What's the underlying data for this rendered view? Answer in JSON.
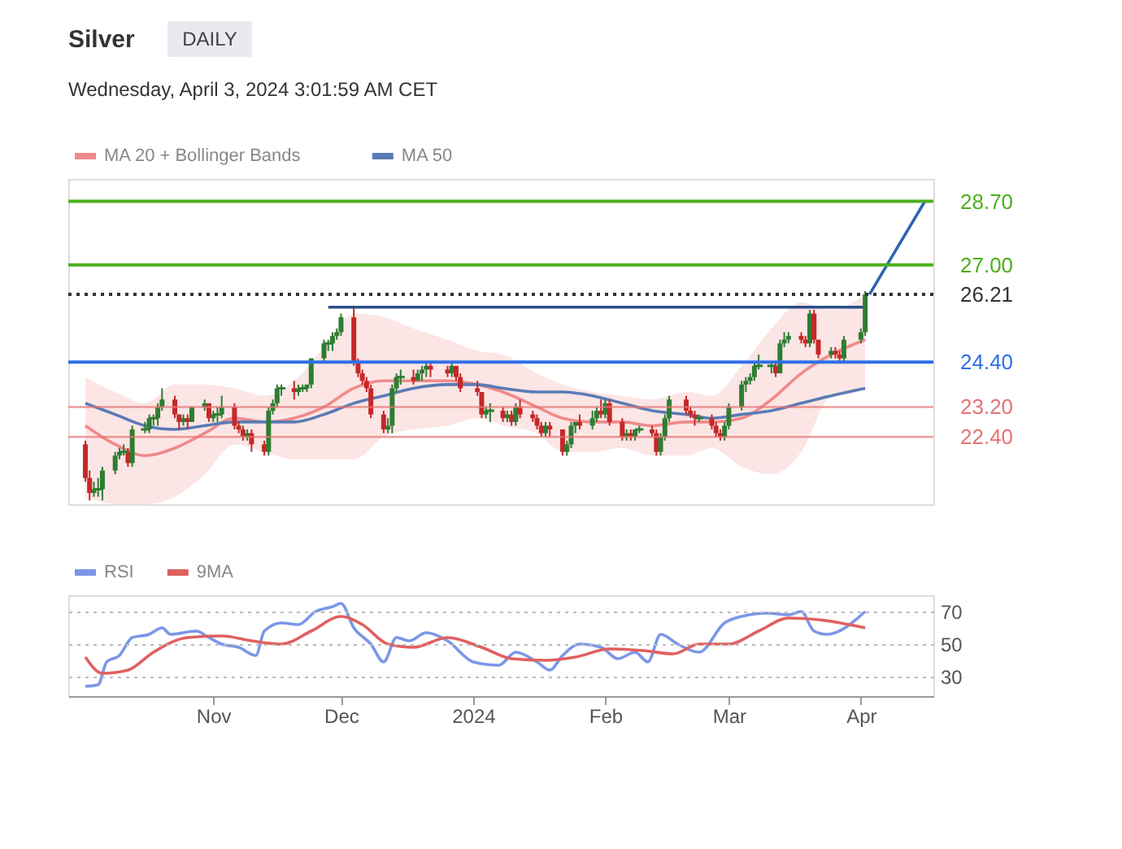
{
  "chart_data": [
    {
      "type": "candlestick",
      "title": "Silver",
      "subtitle": "Wednesday, April 3, 2024 3:01:59 AM CET",
      "annotations": [
        "DAILY"
      ],
      "xlim": [
        "2023-09-28",
        "2024-04-18"
      ],
      "ylim": [
        20.6,
        29.3
      ],
      "tick_labels": "y",
      "legend": "top left",
      "yticks": [
        {
          "value": 28.7,
          "label": "28.70"
        },
        {
          "value": 27.0,
          "label": "27.00"
        },
        {
          "value": 26.21,
          "label": "26.21"
        },
        {
          "value": 24.4,
          "label": "24.40"
        },
        {
          "value": 23.2,
          "label": "23.20"
        },
        {
          "value": 22.4,
          "label": "22.40"
        }
      ],
      "x": [
        "2023-10-02",
        "2023-10-03",
        "2023-10-04",
        "2023-10-05",
        "2023-10-06",
        "2023-10-09",
        "2023-10-10",
        "2023-10-11",
        "2023-10-12",
        "2023-10-13",
        "2023-10-16",
        "2023-10-17",
        "2023-10-18",
        "2023-10-19",
        "2023-10-20",
        "2023-10-23",
        "2023-10-24",
        "2023-10-25",
        "2023-10-26",
        "2023-10-27",
        "2023-10-30",
        "2023-10-31",
        "2023-11-01",
        "2023-11-02",
        "2023-11-03",
        "2023-11-06",
        "2023-11-07",
        "2023-11-08",
        "2023-11-09",
        "2023-11-10",
        "2023-11-13",
        "2023-11-14",
        "2023-11-15",
        "2023-11-16",
        "2023-11-17",
        "2023-11-20",
        "2023-11-21",
        "2023-11-22",
        "2023-11-23",
        "2023-11-24",
        "2023-11-27",
        "2023-11-28",
        "2023-11-29",
        "2023-11-30",
        "2023-12-01",
        "2023-12-04",
        "2023-12-05",
        "2023-12-06",
        "2023-12-07",
        "2023-12-08",
        "2023-12-11",
        "2023-12-12",
        "2023-12-13",
        "2023-12-14",
        "2023-12-15",
        "2023-12-18",
        "2023-12-19",
        "2023-12-20",
        "2023-12-21",
        "2023-12-22",
        "2023-12-26",
        "2023-12-27",
        "2023-12-28",
        "2023-12-29",
        "2024-01-02",
        "2024-01-03",
        "2024-01-04",
        "2024-01-05",
        "2024-01-08",
        "2024-01-09",
        "2024-01-10",
        "2024-01-11",
        "2024-01-12",
        "2024-01-15",
        "2024-01-16",
        "2024-01-17",
        "2024-01-18",
        "2024-01-19",
        "2024-01-22",
        "2024-01-23",
        "2024-01-24",
        "2024-01-25",
        "2024-01-26",
        "2024-01-29",
        "2024-01-30",
        "2024-01-31",
        "2024-02-01",
        "2024-02-02",
        "2024-02-05",
        "2024-02-06",
        "2024-02-07",
        "2024-02-08",
        "2024-02-09",
        "2024-02-12",
        "2024-02-13",
        "2024-02-14",
        "2024-02-15",
        "2024-02-16",
        "2024-02-20",
        "2024-02-21",
        "2024-02-22",
        "2024-02-23",
        "2024-02-26",
        "2024-02-27",
        "2024-02-28",
        "2024-02-29",
        "2024-03-01",
        "2024-03-04",
        "2024-03-05",
        "2024-03-06",
        "2024-03-07",
        "2024-03-08",
        "2024-03-11",
        "2024-03-12",
        "2024-03-13",
        "2024-03-14",
        "2024-03-15",
        "2024-03-18",
        "2024-03-19",
        "2024-03-20",
        "2024-03-21",
        "2024-03-22",
        "2024-03-25",
        "2024-03-26",
        "2024-03-27",
        "2024-03-28",
        "2024-04-01",
        "2024-04-02"
      ],
      "ohlc": [
        [
          22.2,
          22.3,
          21.2,
          21.3
        ],
        [
          21.3,
          21.5,
          20.7,
          20.9
        ],
        [
          20.9,
          21.2,
          20.8,
          21.0
        ],
        [
          21.0,
          21.3,
          20.8,
          21.0
        ],
        [
          21.0,
          21.6,
          20.7,
          21.5
        ],
        [
          21.5,
          22.0,
          21.4,
          21.9
        ],
        [
          21.9,
          22.1,
          21.8,
          22.0
        ],
        [
          22.0,
          22.2,
          21.9,
          22.0
        ],
        [
          22.0,
          22.1,
          21.6,
          21.7
        ],
        [
          21.7,
          22.7,
          21.6,
          22.6
        ],
        [
          22.6,
          22.8,
          22.5,
          22.6
        ],
        [
          22.6,
          23.0,
          22.5,
          22.9
        ],
        [
          22.9,
          23.0,
          22.7,
          22.9
        ],
        [
          22.9,
          23.3,
          22.7,
          23.2
        ],
        [
          23.2,
          23.7,
          23.1,
          23.4
        ],
        [
          23.4,
          23.5,
          22.9,
          23.0
        ],
        [
          23.0,
          23.0,
          22.6,
          22.8
        ],
        [
          22.8,
          23.0,
          22.7,
          22.9
        ],
        [
          22.9,
          23.0,
          22.6,
          22.8
        ],
        [
          22.8,
          23.2,
          22.8,
          23.2
        ],
        [
          23.2,
          23.4,
          23.1,
          23.3
        ],
        [
          23.3,
          23.3,
          22.8,
          22.9
        ],
        [
          22.9,
          23.1,
          22.8,
          23.0
        ],
        [
          23.0,
          23.2,
          22.8,
          23.0
        ],
        [
          23.0,
          23.5,
          22.9,
          23.2
        ],
        [
          23.2,
          23.3,
          22.6,
          22.7
        ],
        [
          22.7,
          22.8,
          22.5,
          22.6
        ],
        [
          22.6,
          22.7,
          22.3,
          22.4
        ],
        [
          22.4,
          22.6,
          22.3,
          22.5
        ],
        [
          22.5,
          22.6,
          22.0,
          22.2
        ],
        [
          22.2,
          22.3,
          21.9,
          22.0
        ],
        [
          22.0,
          23.2,
          21.9,
          23.1
        ],
        [
          23.1,
          23.4,
          23.0,
          23.3
        ],
        [
          23.3,
          23.8,
          23.2,
          23.7
        ],
        [
          23.7,
          23.8,
          23.5,
          23.7
        ],
        [
          23.7,
          23.9,
          23.4,
          23.6
        ],
        [
          23.6,
          23.8,
          23.5,
          23.7
        ],
        [
          23.7,
          23.8,
          23.6,
          23.7
        ],
        [
          23.7,
          23.8,
          23.6,
          23.8
        ],
        [
          23.8,
          24.5,
          23.7,
          24.5
        ],
        [
          24.5,
          25.0,
          24.4,
          24.9
        ],
        [
          24.9,
          25.0,
          24.7,
          24.9
        ],
        [
          24.9,
          25.2,
          24.7,
          25.1
        ],
        [
          25.1,
          25.3,
          25.0,
          25.2
        ],
        [
          25.2,
          25.7,
          25.1,
          25.6
        ],
        [
          25.6,
          25.85,
          24.3,
          24.4
        ],
        [
          24.4,
          24.5,
          24.0,
          24.1
        ],
        [
          24.1,
          24.2,
          23.8,
          23.9
        ],
        [
          23.9,
          24.0,
          23.6,
          23.7
        ],
        [
          23.7,
          23.8,
          22.9,
          23.0
        ],
        [
          23.0,
          23.1,
          22.5,
          22.6
        ],
        [
          22.6,
          22.9,
          22.5,
          22.7
        ],
        [
          22.7,
          23.8,
          22.5,
          23.7
        ],
        [
          23.7,
          24.1,
          23.6,
          24.0
        ],
        [
          24.0,
          24.2,
          23.8,
          24.0
        ],
        [
          24.0,
          24.2,
          23.8,
          23.9
        ],
        [
          23.9,
          24.2,
          23.9,
          24.1
        ],
        [
          24.1,
          24.3,
          23.9,
          24.2
        ],
        [
          24.2,
          24.4,
          24.0,
          24.3
        ],
        [
          24.3,
          24.4,
          24.0,
          24.2
        ],
        [
          24.2,
          24.3,
          24.0,
          24.1
        ],
        [
          24.1,
          24.4,
          24.0,
          24.3
        ],
        [
          24.3,
          24.3,
          23.9,
          24.0
        ],
        [
          24.0,
          24.1,
          23.6,
          23.7
        ],
        [
          23.7,
          23.9,
          23.5,
          23.6
        ],
        [
          23.6,
          23.6,
          22.9,
          23.0
        ],
        [
          23.0,
          23.2,
          22.9,
          23.1
        ],
        [
          23.1,
          23.3,
          22.8,
          23.1
        ],
        [
          23.1,
          23.2,
          22.8,
          22.9
        ],
        [
          22.9,
          23.1,
          22.8,
          23.0
        ],
        [
          23.0,
          23.1,
          22.7,
          22.8
        ],
        [
          22.8,
          23.3,
          22.7,
          23.2
        ],
        [
          23.2,
          23.4,
          22.9,
          23.0
        ],
        [
          23.0,
          23.1,
          22.8,
          22.9
        ],
        [
          22.9,
          23.0,
          22.6,
          22.7
        ],
        [
          22.7,
          22.8,
          22.4,
          22.5
        ],
        [
          22.5,
          22.8,
          22.4,
          22.7
        ],
        [
          22.7,
          22.8,
          22.4,
          22.6
        ],
        [
          22.6,
          22.6,
          21.9,
          22.0
        ],
        [
          22.0,
          22.3,
          21.9,
          22.2
        ],
        [
          22.2,
          22.8,
          22.1,
          22.7
        ],
        [
          22.7,
          22.8,
          22.5,
          22.8
        ],
        [
          22.8,
          23.0,
          22.6,
          22.7
        ],
        [
          22.7,
          23.1,
          22.6,
          22.9
        ],
        [
          22.9,
          23.2,
          22.8,
          23.1
        ],
        [
          23.1,
          23.4,
          22.9,
          23.0
        ],
        [
          23.0,
          23.4,
          22.9,
          23.3
        ],
        [
          23.3,
          23.4,
          22.7,
          22.8
        ],
        [
          22.8,
          22.9,
          22.3,
          22.4
        ],
        [
          22.4,
          22.6,
          22.3,
          22.5
        ],
        [
          22.5,
          22.6,
          22.3,
          22.4
        ],
        [
          22.4,
          22.6,
          22.3,
          22.6
        ],
        [
          22.6,
          22.7,
          22.5,
          22.6
        ],
        [
          22.6,
          22.7,
          22.4,
          22.5
        ],
        [
          22.5,
          22.6,
          21.9,
          22.0
        ],
        [
          22.0,
          22.5,
          21.9,
          22.4
        ],
        [
          22.4,
          23.0,
          22.3,
          22.9
        ],
        [
          22.9,
          23.5,
          22.8,
          23.4
        ],
        [
          23.4,
          23.5,
          23.0,
          23.1
        ],
        [
          23.1,
          23.2,
          22.9,
          23.0
        ],
        [
          23.0,
          23.1,
          22.7,
          22.9
        ],
        [
          22.9,
          23.0,
          22.8,
          22.9
        ],
        [
          22.9,
          23.0,
          22.6,
          22.7
        ],
        [
          22.7,
          22.8,
          22.4,
          22.5
        ],
        [
          22.5,
          22.6,
          22.3,
          22.4
        ],
        [
          22.4,
          22.8,
          22.3,
          22.7
        ],
        [
          22.7,
          23.3,
          22.6,
          23.2
        ],
        [
          23.2,
          23.9,
          23.1,
          23.8
        ],
        [
          23.8,
          24.0,
          23.6,
          23.9
        ],
        [
          23.9,
          24.1,
          23.8,
          24.0
        ],
        [
          24.0,
          24.4,
          23.9,
          24.3
        ],
        [
          24.3,
          24.6,
          24.2,
          24.3
        ],
        [
          24.3,
          24.4,
          24.1,
          24.3
        ],
        [
          24.3,
          24.4,
          24.0,
          24.1
        ],
        [
          24.1,
          25.0,
          24.1,
          24.9
        ],
        [
          24.9,
          25.2,
          24.8,
          25.0
        ],
        [
          25.0,
          25.2,
          24.9,
          25.1
        ],
        [
          25.1,
          25.2,
          24.9,
          25.0
        ],
        [
          25.0,
          25.1,
          24.8,
          24.9
        ],
        [
          24.9,
          25.8,
          24.8,
          25.7
        ],
        [
          25.7,
          25.8,
          24.9,
          25.0
        ],
        [
          25.0,
          25.0,
          24.5,
          24.6
        ],
        [
          24.6,
          24.8,
          24.5,
          24.7
        ],
        [
          24.7,
          24.8,
          24.5,
          24.6
        ],
        [
          24.6,
          24.7,
          24.4,
          24.5
        ],
        [
          24.5,
          25.1,
          24.4,
          25.0
        ],
        [
          25.0,
          25.3,
          24.9,
          25.2
        ],
        [
          25.2,
          26.3,
          25.1,
          26.21
        ]
      ],
      "series": [
        {
          "name": "MA 20 + Bollinger Bands",
          "type": "line",
          "color": "#f08a8a",
          "x": [
            "2023-10-02",
            "2023-10-09",
            "2023-10-16",
            "2023-10-23",
            "2023-10-30",
            "2023-11-06",
            "2023-11-13",
            "2023-11-20",
            "2023-11-27",
            "2023-12-04",
            "2023-12-11",
            "2023-12-18",
            "2023-12-26",
            "2024-01-02",
            "2024-01-08",
            "2024-01-16",
            "2024-01-22",
            "2024-01-29",
            "2024-02-05",
            "2024-02-12",
            "2024-02-20",
            "2024-02-26",
            "2024-03-04",
            "2024-03-11",
            "2024-03-18",
            "2024-03-25",
            "2024-04-02"
          ],
          "values": [
            22.7,
            22.2,
            21.9,
            22.1,
            22.5,
            22.9,
            22.8,
            22.9,
            23.2,
            23.7,
            23.9,
            23.9,
            23.9,
            23.8,
            23.6,
            23.2,
            22.9,
            22.8,
            22.8,
            22.7,
            22.8,
            22.8,
            22.9,
            23.4,
            24.1,
            24.6,
            25.0
          ],
          "lower": [
            20.8,
            20.6,
            20.6,
            20.8,
            21.4,
            22.2,
            22.0,
            21.8,
            21.8,
            21.8,
            22.4,
            22.6,
            22.7,
            22.9,
            22.7,
            22.5,
            22.0,
            22.0,
            22.1,
            21.9,
            21.9,
            22.1,
            21.6,
            21.4,
            22.0,
            23.5,
            23.7
          ],
          "upper": [
            24.0,
            23.6,
            23.3,
            23.8,
            23.8,
            23.7,
            23.5,
            23.9,
            24.8,
            25.7,
            25.6,
            25.3,
            25.0,
            24.7,
            24.6,
            24.1,
            23.8,
            23.6,
            23.5,
            23.4,
            23.6,
            23.5,
            24.3,
            25.3,
            26.0,
            25.8,
            26.2
          ]
        },
        {
          "name": "MA 50",
          "type": "line",
          "color": "#5a7bb5",
          "x": [
            "2023-10-02",
            "2023-10-09",
            "2023-10-16",
            "2023-10-23",
            "2023-10-30",
            "2023-11-06",
            "2023-11-13",
            "2023-11-20",
            "2023-11-27",
            "2023-12-04",
            "2023-12-11",
            "2023-12-18",
            "2023-12-26",
            "2024-01-02",
            "2024-01-08",
            "2024-01-16",
            "2024-01-22",
            "2024-01-29",
            "2024-02-05",
            "2024-02-12",
            "2024-02-20",
            "2024-02-26",
            "2024-03-04",
            "2024-03-11",
            "2024-03-18",
            "2024-03-25",
            "2024-04-02"
          ],
          "values": [
            23.3,
            23.0,
            22.7,
            22.6,
            22.7,
            22.8,
            22.8,
            22.8,
            23.0,
            23.3,
            23.5,
            23.7,
            23.8,
            23.8,
            23.7,
            23.6,
            23.6,
            23.5,
            23.3,
            23.1,
            23.0,
            22.9,
            23.0,
            23.1,
            23.3,
            23.5,
            23.7
          ]
        },
        {
          "type": "line",
          "color": "#2a4f8a",
          "x": [
            "2023-11-28",
            "2024-04-02"
          ],
          "values": [
            25.87,
            25.87
          ]
        },
        {
          "type": "line",
          "color": "#2f64b0",
          "x": [
            "2024-04-03",
            "2024-04-16"
          ],
          "values": [
            26.21,
            28.7
          ]
        }
      ],
      "ref_lines": [
        {
          "axis": "y",
          "value": 28.7,
          "color": "#4caf1c"
        },
        {
          "axis": "y",
          "value": 27.0,
          "color": "#4caf1c"
        },
        {
          "axis": "y",
          "value": 26.21,
          "color": "#333333",
          "line_style": "dotted"
        },
        {
          "axis": "y",
          "value": 24.4,
          "color": "#2f6fe8"
        },
        {
          "axis": "y",
          "value": 23.2,
          "color": "#e57373"
        },
        {
          "axis": "y",
          "value": 22.4,
          "color": "#e57373"
        }
      ]
    },
    {
      "type": "line",
      "xlim": [
        "2023-09-28",
        "2024-04-18"
      ],
      "ylim": [
        18,
        80
      ],
      "yticks": [
        30,
        50,
        70
      ],
      "grid": "y",
      "legend": "top left",
      "xticks": [
        {
          "value": "2023-11-01",
          "label": "Nov"
        },
        {
          "value": "2023-12-01",
          "label": "Dec"
        },
        {
          "value": "2024-01-01",
          "label": "2024"
        },
        {
          "value": "2024-02-01",
          "label": "Feb"
        },
        {
          "value": "2024-03-01",
          "label": "Mar"
        },
        {
          "value": "2024-04-01",
          "label": "Apr"
        }
      ],
      "series": [
        {
          "name": "RSI",
          "color": "#7b96e8",
          "x": [
            "2023-10-02",
            "2023-10-05",
            "2023-10-07",
            "2023-10-10",
            "2023-10-13",
            "2023-10-17",
            "2023-10-20",
            "2023-10-22",
            "2023-10-28",
            "2023-10-31",
            "2023-11-03",
            "2023-11-07",
            "2023-11-11",
            "2023-11-13",
            "2023-11-17",
            "2023-11-21",
            "2023-11-25",
            "2023-11-29",
            "2023-12-01",
            "2023-12-04",
            "2023-12-08",
            "2023-12-11",
            "2023-12-14",
            "2023-12-17",
            "2023-12-21",
            "2023-12-26",
            "2024-01-01",
            "2024-01-07",
            "2024-01-11",
            "2024-01-16",
            "2024-01-19",
            "2024-01-22",
            "2024-01-26",
            "2024-01-31",
            "2024-02-04",
            "2024-02-08",
            "2024-02-11",
            "2024-02-14",
            "2024-02-18",
            "2024-02-23",
            "2024-02-29",
            "2024-03-04",
            "2024-03-10",
            "2024-03-15",
            "2024-03-18",
            "2024-03-21",
            "2024-03-24",
            "2024-04-02"
          ],
          "values": [
            24,
            25,
            39,
            43,
            54,
            56,
            60,
            56,
            58,
            54,
            50,
            48,
            43,
            58,
            63,
            62,
            70,
            73,
            75,
            60,
            50,
            39,
            54,
            52,
            57,
            52,
            39,
            37,
            45,
            39,
            34,
            43,
            50,
            48,
            41,
            45,
            39,
            56,
            50,
            45,
            63,
            67,
            69,
            68,
            70,
            58,
            56,
            70
          ]
        },
        {
          "name": "9MA",
          "color": "#e06060",
          "x": [
            "2023-10-02",
            "2023-10-06",
            "2023-10-12",
            "2023-10-18",
            "2023-10-26",
            "2023-11-03",
            "2023-11-10",
            "2023-11-17",
            "2023-11-24",
            "2023-12-01",
            "2023-12-06",
            "2023-12-12",
            "2023-12-18",
            "2023-12-26",
            "2024-01-03",
            "2024-01-10",
            "2024-01-18",
            "2024-01-25",
            "2024-02-02",
            "2024-02-10",
            "2024-02-17",
            "2024-02-23",
            "2024-03-01",
            "2024-03-08",
            "2024-03-15",
            "2024-03-22",
            "2024-04-02"
          ],
          "values": [
            42,
            32,
            34,
            45,
            54,
            55,
            52,
            50,
            58,
            67,
            62,
            50,
            48,
            54,
            48,
            41,
            40,
            42,
            47,
            46,
            44,
            50,
            50,
            58,
            66,
            65,
            60
          ]
        }
      ]
    }
  ]
}
